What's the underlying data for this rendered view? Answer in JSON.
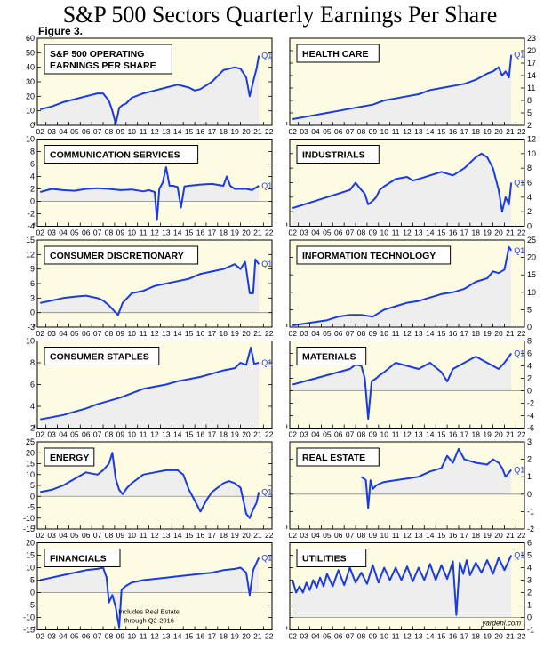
{
  "title": "S&P 500 Sectors Quarterly Earnings Per Share",
  "figure_label": "Figure 3.",
  "x_ticks": [
    "02",
    "03",
    "04",
    "05",
    "06",
    "07",
    "08",
    "09",
    "10",
    "11",
    "12",
    "13",
    "14",
    "15",
    "16",
    "17",
    "18",
    "19",
    "20",
    "21",
    "22"
  ],
  "source": "yardeni.com",
  "colors": {
    "line": "#1a3be0",
    "panel_bg": "#fdfbe2",
    "area_fill": "#eeeeee"
  },
  "chart_data": [
    {
      "type": "area",
      "title": "S&P 500 OPERATING\nEARNINGS PER SHARE",
      "ylim": [
        0,
        60
      ],
      "yticks": [
        0,
        10,
        20,
        30,
        40,
        50,
        60
      ],
      "label": "Q1",
      "x": [
        2002.0,
        2003.0,
        2004.0,
        2005.0,
        2006.0,
        2007.0,
        2007.5,
        2008.0,
        2008.3,
        2008.6,
        2008.9,
        2009.2,
        2009.5,
        2010.0,
        2011.0,
        2012.0,
        2013.0,
        2014.0,
        2015.0,
        2015.5,
        2016.0,
        2017.0,
        2018.0,
        2019.0,
        2019.5,
        2020.0,
        2020.3,
        2020.6,
        2020.9,
        2021.1
      ],
      "y": [
        11,
        13,
        16,
        18,
        20,
        22,
        22,
        17,
        10,
        1,
        12,
        14,
        15,
        19,
        22,
        24,
        26,
        28,
        26,
        24,
        25,
        30,
        38,
        40,
        39,
        33,
        20,
        30,
        39,
        48
      ]
    },
    {
      "type": "area",
      "title": "HEALTH CARE",
      "ylim": [
        2,
        23
      ],
      "yticks": [
        2,
        5,
        8,
        11,
        14,
        17,
        20,
        23
      ],
      "label": "Q1",
      "x": [
        2002.0,
        2003.0,
        2004.0,
        2005.0,
        2006.0,
        2007.0,
        2008.0,
        2009.0,
        2010.0,
        2011.0,
        2012.0,
        2013.0,
        2014.0,
        2015.0,
        2016.0,
        2017.0,
        2018.0,
        2019.0,
        2019.5,
        2020.0,
        2020.3,
        2020.6,
        2020.9,
        2021.1
      ],
      "y": [
        3.5,
        4,
        4.5,
        5,
        5.5,
        6,
        6.5,
        7,
        8,
        8.5,
        9,
        9.5,
        10.5,
        11,
        11.5,
        12,
        13,
        14.5,
        15,
        16,
        14,
        15,
        13.5,
        19
      ]
    },
    {
      "type": "area",
      "title": "COMMUNICATION SERVICES",
      "ylim": [
        -4,
        10
      ],
      "yticks": [
        -4,
        -2,
        0,
        2,
        4,
        6,
        8,
        10
      ],
      "label": "Q1",
      "x": [
        2002.0,
        2003.0,
        2004.0,
        2005.0,
        2006.0,
        2007.0,
        2008.0,
        2009.0,
        2010.0,
        2011.0,
        2011.5,
        2012.0,
        2012.2,
        2012.4,
        2012.7,
        2013.0,
        2013.3,
        2013.6,
        2014.0,
        2014.3,
        2014.6,
        2015.0,
        2016.0,
        2017.0,
        2018.0,
        2018.3,
        2018.6,
        2019.0,
        2020.0,
        2020.5,
        2021.1
      ],
      "y": [
        1.5,
        2,
        1.8,
        1.7,
        2,
        2.1,
        2,
        1.8,
        1.9,
        1.6,
        1.8,
        1.5,
        -3,
        2,
        3,
        5.5,
        2.5,
        2.5,
        2.3,
        -1,
        2.4,
        2.5,
        2.7,
        2.8,
        2.5,
        4,
        2.5,
        2,
        2,
        1.8,
        2.5
      ]
    },
    {
      "type": "area",
      "title": "INDUSTRIALS",
      "ylim": [
        0,
        12
      ],
      "yticks": [
        0,
        2,
        4,
        6,
        8,
        10,
        12
      ],
      "label": "Q1",
      "x": [
        2002.0,
        2003.0,
        2004.0,
        2005.0,
        2006.0,
        2007.0,
        2007.5,
        2008.0,
        2008.3,
        2008.6,
        2009.0,
        2009.3,
        2009.6,
        2010.0,
        2011.0,
        2012.0,
        2012.5,
        2013.0,
        2014.0,
        2015.0,
        2016.0,
        2017.0,
        2018.0,
        2018.5,
        2019.0,
        2019.5,
        2020.0,
        2020.3,
        2020.6,
        2020.9,
        2021.1
      ],
      "y": [
        2.5,
        3,
        3.5,
        4,
        4.5,
        5,
        6,
        5,
        4.5,
        3,
        3.5,
        4,
        5,
        5.5,
        6.5,
        6.8,
        6.3,
        6.5,
        7,
        7.5,
        7,
        8,
        9.5,
        10,
        9.5,
        8,
        5,
        2,
        4,
        3,
        6
      ]
    },
    {
      "type": "area",
      "title": "CONSUMER DISCRETIONARY",
      "ylim": [
        -3,
        15
      ],
      "yticks": [
        -3,
        0,
        3,
        6,
        9,
        12,
        15
      ],
      "label": "Q1",
      "x": [
        2002.0,
        2003.0,
        2004.0,
        2005.0,
        2006.0,
        2007.0,
        2007.5,
        2008.0,
        2008.4,
        2008.8,
        2009.2,
        2009.6,
        2010.0,
        2011.0,
        2012.0,
        2013.0,
        2014.0,
        2015.0,
        2016.0,
        2017.0,
        2018.0,
        2019.0,
        2019.5,
        2019.9,
        2020.0,
        2020.3,
        2020.6,
        2020.8,
        2021.1
      ],
      "y": [
        2,
        2.5,
        3,
        3.3,
        3.5,
        3,
        2.5,
        1.5,
        0.5,
        -0.5,
        2,
        3,
        4,
        4.5,
        5.5,
        6,
        6.5,
        7,
        8,
        8.5,
        9,
        10,
        9,
        10.5,
        9,
        4,
        4,
        11,
        10
      ]
    },
    {
      "type": "area",
      "title": "INFORMATION TECHNOLOGY",
      "ylim": [
        0,
        25
      ],
      "yticks": [
        0,
        5,
        10,
        15,
        20,
        25
      ],
      "label": "Q1",
      "x": [
        2002.0,
        2003.0,
        2004.0,
        2005.0,
        2006.0,
        2007.0,
        2008.0,
        2009.0,
        2010.0,
        2011.0,
        2012.0,
        2013.0,
        2014.0,
        2015.0,
        2016.0,
        2017.0,
        2018.0,
        2019.0,
        2019.5,
        2020.0,
        2020.5,
        2020.9,
        2021.1
      ],
      "y": [
        0.5,
        1,
        1.5,
        2,
        3,
        3.5,
        3.5,
        3,
        5,
        6,
        7,
        7.5,
        8.5,
        9.5,
        10,
        11,
        13,
        14,
        16,
        15.5,
        16.5,
        23,
        22
      ]
    },
    {
      "type": "area",
      "title": "CONSUMER STAPLES",
      "ylim": [
        2,
        10
      ],
      "yticks": [
        2,
        4,
        6,
        8,
        10
      ],
      "label": "Q1",
      "x": [
        2002.0,
        2003.0,
        2004.0,
        2005.0,
        2006.0,
        2007.0,
        2008.0,
        2009.0,
        2010.0,
        2011.0,
        2012.0,
        2013.0,
        2014.0,
        2015.0,
        2016.0,
        2017.0,
        2018.0,
        2019.0,
        2019.5,
        2020.0,
        2020.4,
        2020.7,
        2021.1
      ],
      "y": [
        2.8,
        3,
        3.2,
        3.5,
        3.8,
        4.2,
        4.5,
        4.8,
        5.2,
        5.6,
        5.8,
        6,
        6.3,
        6.5,
        6.7,
        7,
        7.3,
        7.5,
        8,
        7.8,
        9.4,
        7.9,
        8
      ]
    },
    {
      "type": "area",
      "title": "MATERIALS",
      "ylim": [
        -6,
        8
      ],
      "yticks": [
        -6,
        -4,
        -2,
        0,
        2,
        4,
        6,
        8
      ],
      "label": "Q1",
      "x": [
        2002.0,
        2003.0,
        2004.0,
        2005.0,
        2006.0,
        2007.0,
        2007.5,
        2008.0,
        2008.3,
        2008.6,
        2008.9,
        2009.3,
        2009.6,
        2010.0,
        2011.0,
        2012.0,
        2013.0,
        2014.0,
        2015.0,
        2015.5,
        2016.0,
        2017.0,
        2018.0,
        2019.0,
        2020.0,
        2020.5,
        2021.1
      ],
      "y": [
        1,
        1.5,
        2,
        2.5,
        3,
        3.5,
        4.2,
        4,
        2,
        -4.5,
        1.5,
        2,
        2.5,
        3,
        4.5,
        4,
        3.5,
        4.5,
        3,
        1.5,
        3.5,
        4.5,
        5.5,
        4.5,
        3.5,
        4.5,
        6
      ]
    },
    {
      "type": "area",
      "title": "ENERGY",
      "ylim": [
        -15,
        25
      ],
      "yticks": [
        -15,
        -10,
        -5,
        0,
        5,
        10,
        15,
        20,
        25
      ],
      "label": "Q1",
      "x": [
        2002.0,
        2003.0,
        2004.0,
        2005.0,
        2006.0,
        2007.0,
        2007.5,
        2008.0,
        2008.3,
        2008.6,
        2008.9,
        2009.2,
        2009.6,
        2010.0,
        2011.0,
        2012.0,
        2013.0,
        2014.0,
        2014.5,
        2015.0,
        2015.5,
        2016.0,
        2016.5,
        2017.0,
        2018.0,
        2018.5,
        2019.0,
        2019.5,
        2020.0,
        2020.3,
        2020.6,
        2020.9,
        2021.1
      ],
      "y": [
        2,
        3,
        5,
        8,
        11,
        10,
        12,
        15,
        20,
        8,
        3,
        1,
        4,
        6,
        10,
        11,
        12,
        12,
        10,
        3,
        -2,
        -7,
        -2,
        2,
        6,
        7,
        6,
        4,
        -8,
        -10,
        -6,
        -3,
        2
      ]
    },
    {
      "type": "area",
      "title": "REAL ESTATE",
      "ylim": [
        -2,
        3
      ],
      "yticks": [
        -2,
        -1,
        0,
        1,
        2,
        3
      ],
      "label": "Q1",
      "x": [
        2008.0,
        2008.4,
        2008.6,
        2008.8,
        2009.0,
        2009.3,
        2009.6,
        2010.0,
        2011.0,
        2012.0,
        2013.0,
        2014.0,
        2015.0,
        2015.5,
        2016.0,
        2016.5,
        2017.0,
        2018.0,
        2019.0,
        2019.5,
        2020.0,
        2020.3,
        2020.6,
        2021.1
      ],
      "y": [
        1,
        0.8,
        -0.8,
        0.8,
        0.3,
        0.5,
        0.6,
        0.7,
        0.8,
        0.9,
        1,
        1.3,
        1.5,
        2.2,
        1.8,
        2.6,
        2,
        1.8,
        1.7,
        2,
        1.8,
        1.5,
        1,
        1.4
      ]
    },
    {
      "type": "area",
      "title": "FINANCIALS",
      "ylim": [
        -15,
        20
      ],
      "yticks": [
        -15,
        -10,
        -5,
        0,
        5,
        10,
        15,
        20
      ],
      "label": "Q1",
      "annotation": "Includes Real Estate\nthrough Q2-2016",
      "x": [
        2002.0,
        2003.0,
        2004.0,
        2005.0,
        2006.0,
        2007.0,
        2007.5,
        2007.8,
        2008.0,
        2008.3,
        2008.6,
        2008.9,
        2009.1,
        2009.3,
        2009.6,
        2010.0,
        2011.0,
        2012.0,
        2013.0,
        2014.0,
        2015.0,
        2016.0,
        2017.0,
        2018.0,
        2019.0,
        2019.5,
        2020.0,
        2020.3,
        2020.6,
        2020.9,
        2021.1
      ],
      "y": [
        5,
        6,
        7,
        8,
        9,
        9.5,
        10,
        6,
        -4,
        -1,
        -6,
        -14,
        1,
        2,
        3,
        4,
        5,
        5.5,
        6,
        6.5,
        7,
        7.5,
        8,
        9,
        9.5,
        10,
        8,
        -1,
        9,
        12,
        14
      ]
    },
    {
      "type": "area",
      "title": "UTILITIES",
      "ylim": [
        -1,
        6
      ],
      "yticks": [
        -1,
        0,
        1,
        2,
        3,
        4,
        5,
        6
      ],
      "label": "Q1",
      "x": [
        2002.0,
        2002.3,
        2002.6,
        2002.9,
        2003.2,
        2003.5,
        2003.8,
        2004.1,
        2004.4,
        2004.7,
        2005.0,
        2005.5,
        2006.0,
        2006.5,
        2007.0,
        2007.5,
        2008.0,
        2008.5,
        2009.0,
        2009.5,
        2010.0,
        2010.5,
        2011.0,
        2011.5,
        2012.0,
        2012.5,
        2013.0,
        2013.5,
        2014.0,
        2014.5,
        2015.0,
        2015.5,
        2016.0,
        2016.3,
        2016.6,
        2016.9,
        2017.2,
        2017.5,
        2018.0,
        2018.5,
        2019.0,
        2019.5,
        2020.0,
        2020.5,
        2021.1
      ],
      "y": [
        3,
        2,
        2.5,
        2,
        2.8,
        2.2,
        3,
        2.4,
        3.2,
        2.5,
        3.5,
        2.5,
        3.8,
        2.6,
        4,
        2.8,
        3.6,
        2.7,
        4.2,
        2.8,
        4,
        3,
        4,
        3,
        4.1,
        2.9,
        4,
        3,
        4.3,
        3,
        4.2,
        3.1,
        4.5,
        0.2,
        4.4,
        3.5,
        4.6,
        3.4,
        4.4,
        3.6,
        4.6,
        3.5,
        4.8,
        3.8,
        5
      ]
    }
  ]
}
